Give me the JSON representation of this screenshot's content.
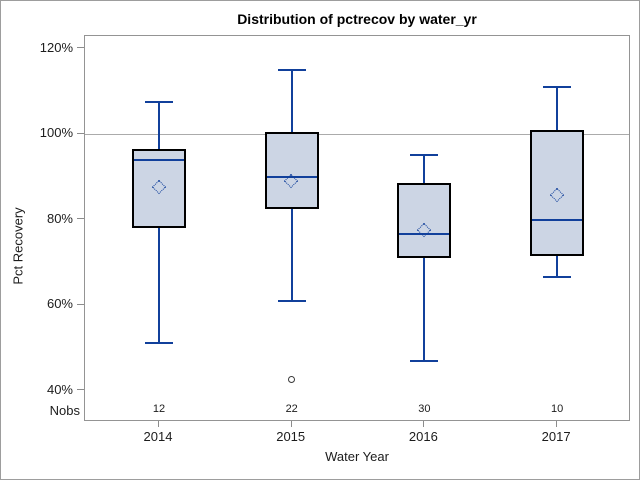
{
  "title": "Distribution of pctrecov by water_yr",
  "y_axis": {
    "title": "Pct Recovery",
    "tick_labels": [
      "120%",
      "100%",
      "80%",
      "60%",
      "40%"
    ],
    "tick_values": [
      120,
      100,
      80,
      60,
      40
    ]
  },
  "x_axis": {
    "title": "Water Year"
  },
  "nobs_label": "Nobs",
  "colors": {
    "box_fill": "#ccd5e4",
    "box_border": "#000000",
    "line": "#11409b",
    "frame": "#949494",
    "reference_line": "#ababab",
    "outlier": "#3a3a3a"
  },
  "chart_data": {
    "type": "boxplot",
    "title": "Distribution of pctrecov by water_yr",
    "xlabel": "Water Year",
    "ylabel": "Pct Recovery",
    "ylim": [
      33,
      123
    ],
    "y_tick_values": [
      40,
      60,
      80,
      100,
      120
    ],
    "reference_line": 100,
    "grid": "off",
    "categories": [
      "2014",
      "2015",
      "2016",
      "2017"
    ],
    "nobs": [
      12,
      22,
      30,
      10
    ],
    "series": [
      {
        "category": "2014",
        "nobs": 12,
        "min": 51,
        "q1": 78,
        "median": 94,
        "q3": 96.5,
        "max": 107.5,
        "mean": 87.5,
        "outliers": []
      },
      {
        "category": "2015",
        "nobs": 22,
        "min": 61,
        "q1": 82.5,
        "median": 90,
        "q3": 100.5,
        "max": 115,
        "mean": 89,
        "outliers": [
          42.5
        ]
      },
      {
        "category": "2016",
        "nobs": 30,
        "min": 47,
        "q1": 71,
        "median": 76.5,
        "q3": 88.5,
        "max": 95,
        "mean": 77.5,
        "outliers": []
      },
      {
        "category": "2017",
        "nobs": 10,
        "min": 66.5,
        "q1": 71.5,
        "median": 80,
        "q3": 101,
        "max": 111,
        "mean": 85.5,
        "outliers": []
      }
    ]
  }
}
